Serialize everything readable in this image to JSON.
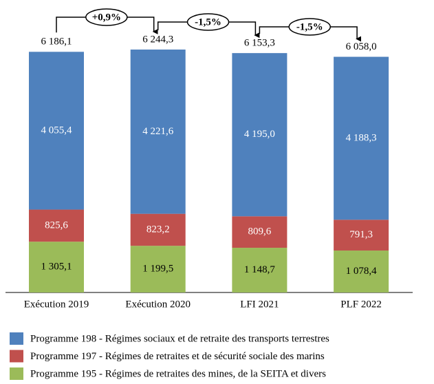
{
  "chart_data": {
    "type": "stacked-bar",
    "categories": [
      "Exécution 2019",
      "Exécution 2020",
      "LFI 2021",
      "PLF 2022"
    ],
    "series": [
      {
        "name": "Programme 195 - Régimes de retraites des mines, de la SEITA et divers",
        "color": "#9bbb59",
        "values": [
          1305.1,
          1199.5,
          1148.7,
          1078.4
        ],
        "value_labels": [
          "1 305,1",
          "1 199,5",
          "1 148,7",
          "1 078,4"
        ]
      },
      {
        "name": "Programme 197 - Régimes de retraites et de sécurité sociale des marins",
        "color": "#c0504d",
        "values": [
          825.6,
          823.2,
          809.6,
          791.3
        ],
        "value_labels": [
          "825,6",
          "823,2",
          "809,6",
          "791,3"
        ]
      },
      {
        "name": "Programme 198 - Régimes sociaux et de retraite des transports terrestres",
        "color": "#4f81bd",
        "values": [
          4055.4,
          4221.6,
          4195.0,
          4188.3
        ],
        "value_labels": [
          "4 055,4",
          "4 221,6",
          "4 195,0",
          "4 188,3"
        ]
      }
    ],
    "totals": [
      6186.1,
      6244.3,
      6153.3,
      6058.0
    ],
    "total_labels": [
      "6 186,1",
      "6 244,3",
      "6 153,3",
      "6 058,0"
    ],
    "annotations": [
      "+0,9%",
      "-1,5%",
      "-1,5%"
    ]
  }
}
